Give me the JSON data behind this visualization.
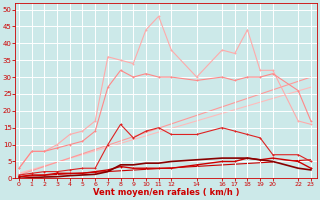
{
  "bg_color": "#cce9e9",
  "grid_color": "#aacccc",
  "x_ticks": [
    0,
    1,
    2,
    3,
    4,
    5,
    6,
    7,
    8,
    9,
    10,
    11,
    12,
    14,
    16,
    17,
    18,
    19,
    20,
    22,
    23
  ],
  "xlabel": "Vent moyen/en rafales ( km/h )",
  "ylabel_ticks": [
    0,
    5,
    10,
    15,
    20,
    25,
    30,
    35,
    40,
    45,
    50
  ],
  "xlim": [
    -0.3,
    23.5
  ],
  "ylim": [
    0,
    52
  ],
  "line_rafales_x": [
    0,
    1,
    2,
    3,
    4,
    5,
    6,
    7,
    8,
    9,
    10,
    11,
    12,
    14,
    16,
    17,
    18,
    19,
    20,
    22,
    23
  ],
  "line_rafales_y": [
    3,
    8,
    8,
    10,
    13,
    14,
    17,
    36,
    35,
    34,
    44,
    48,
    38,
    30,
    38,
    37,
    44,
    32,
    32,
    17,
    16
  ],
  "line_rafales_color": "#ffaaaa",
  "line_moy2_x": [
    0,
    1,
    2,
    3,
    4,
    5,
    6,
    7,
    8,
    9,
    10,
    11,
    12,
    14,
    16,
    17,
    18,
    19,
    20,
    22,
    23
  ],
  "line_moy2_y": [
    3,
    8,
    8,
    9,
    10,
    11,
    14,
    27,
    32,
    30,
    31,
    30,
    30,
    29,
    30,
    29,
    30,
    30,
    31,
    26,
    17
  ],
  "line_moy2_color": "#ff8888",
  "line_moy_x": [
    0,
    1,
    2,
    3,
    4,
    5,
    6,
    7,
    8,
    9,
    10,
    11,
    12,
    14,
    16,
    17,
    18,
    19,
    20,
    22,
    23
  ],
  "line_moy_y": [
    1,
    1.5,
    2,
    2,
    2.5,
    3,
    3,
    10,
    16,
    12,
    14,
    15,
    13,
    13,
    15,
    14,
    13,
    12,
    7,
    7,
    5
  ],
  "line_moy_color": "#dd2222",
  "line_base_x": [
    0,
    1,
    2,
    3,
    4,
    5,
    6,
    7,
    8,
    9,
    10,
    11,
    12,
    14,
    16,
    17,
    18,
    19,
    20,
    22,
    23
  ],
  "line_base_y": [
    0.5,
    1,
    1,
    1.5,
    1.5,
    1.5,
    2,
    2.5,
    3.5,
    3,
    3,
    3,
    3,
    4,
    5,
    5,
    6,
    5.5,
    6,
    5,
    3
  ],
  "line_base_color": "#cc0000",
  "trend1_x": [
    0,
    23
  ],
  "trend1_y": [
    1.5,
    27
  ],
  "trend1_color": "#ffbbbb",
  "trend2_x": [
    0,
    23
  ],
  "trend2_y": [
    1,
    30
  ],
  "trend2_color": "#ff9999",
  "trend3_x": [
    0,
    23
  ],
  "trend3_y": [
    0.5,
    5.5
  ],
  "trend3_color": "#cc0000",
  "curve_dark_x": [
    0,
    1,
    2,
    3,
    4,
    5,
    6,
    7,
    8,
    9,
    10,
    11,
    12,
    14,
    16,
    17,
    18,
    19,
    20,
    22,
    23
  ],
  "curve_dark_y": [
    0,
    0.2,
    0.4,
    0.5,
    0.8,
    1,
    1.2,
    2,
    4,
    4,
    4.5,
    4.5,
    5,
    5.5,
    6,
    6,
    6,
    5.5,
    5,
    3,
    2.5
  ],
  "curve_dark_color": "#880000",
  "tick_color": "#cc0000",
  "axis_label_color": "#cc0000"
}
